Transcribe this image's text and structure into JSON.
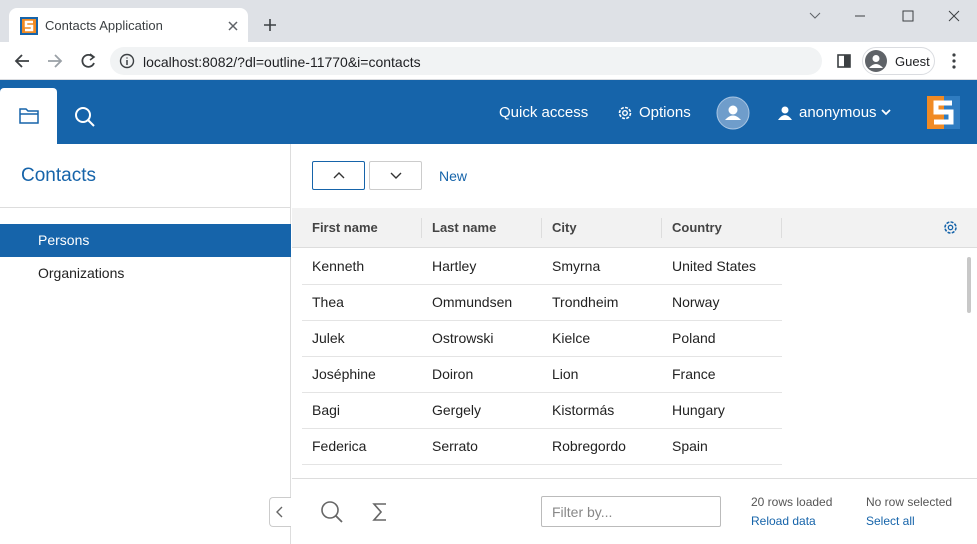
{
  "browser": {
    "tab_title": "Contacts Application",
    "url": "localhost:8082/?dl=outline-11770&i=contacts",
    "profile": "Guest"
  },
  "header": {
    "quick_access": "Quick access",
    "options": "Options",
    "user": "anonymous"
  },
  "navigation": {
    "title": "Contacts",
    "items": [
      "Persons",
      "Organizations"
    ],
    "selected_index": 0
  },
  "toolbar": {
    "new": "New"
  },
  "table": {
    "columns": [
      "First name",
      "Last name",
      "City",
      "Country"
    ],
    "rows": [
      [
        "Kenneth",
        "Hartley",
        "Smyrna",
        "United States"
      ],
      [
        "Thea",
        "Ommundsen",
        "Trondheim",
        "Norway"
      ],
      [
        "Julek",
        "Ostrowski",
        "Kielce",
        "Poland"
      ],
      [
        "Joséphine",
        "Doiron",
        "Lion",
        "France"
      ],
      [
        "Bagi",
        "Gergely",
        "Kistormás",
        "Hungary"
      ],
      [
        "Federica",
        "Serrato",
        "Robregordo",
        "Spain"
      ]
    ]
  },
  "footer": {
    "filter_placeholder": "Filter by...",
    "rows_loaded": "20 rows loaded",
    "reload": "Reload data",
    "selection": "No row selected",
    "select_all": "Select all"
  }
}
